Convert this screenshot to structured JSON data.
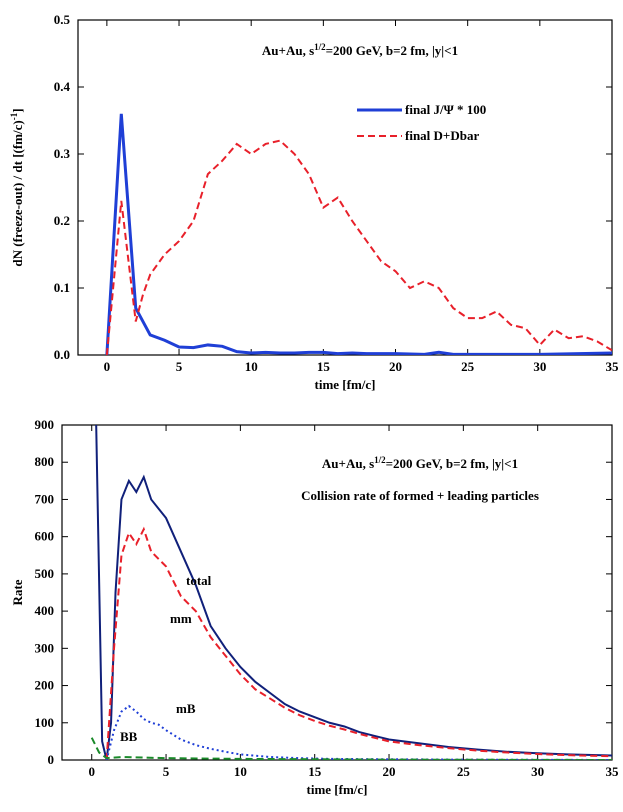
{
  "chart_data": [
    {
      "type": "line",
      "title": [
        "Au+Au, s",
        "1/2",
        "=200 GeV, b=2 fm, |y|<1"
      ],
      "x_label": "time [fm/c]",
      "y_label": [
        "dN (freeze-out) / dt   [(fm/c)",
        "-1",
        "]"
      ],
      "xlim": [
        -2,
        35
      ],
      "xticks": [
        0,
        5,
        10,
        15,
        20,
        25,
        30,
        35
      ],
      "ylim": [
        0,
        0.5
      ],
      "yticks": [
        {
          "value": 0,
          "label": "0.0"
        },
        0.1,
        0.2,
        0.3,
        0.4,
        0.5
      ],
      "legend": "upper right",
      "series": [
        {
          "name": "final J/Ψ * 100",
          "color": "#1f3fd6",
          "dash": "solid",
          "x": [
            0,
            1,
            2,
            3,
            4,
            5,
            6,
            7,
            8,
            9,
            10,
            11,
            12,
            13,
            14,
            15,
            16,
            17,
            18,
            20,
            22,
            23,
            24,
            30,
            35
          ],
          "values": [
            0,
            0.36,
            0.07,
            0.03,
            0.022,
            0.012,
            0.011,
            0.015,
            0.013,
            0.005,
            0.003,
            0.004,
            0.003,
            0.003,
            0.004,
            0.004,
            0.002,
            0.003,
            0.002,
            0.002,
            0.001,
            0.004,
            0.001,
            0.001,
            0.003
          ]
        },
        {
          "name": "final D+Dbar",
          "color": "#e8202a",
          "dash": "dashed",
          "x": [
            0,
            1,
            2,
            2.5,
            3,
            4,
            5,
            6,
            7,
            8,
            9,
            10,
            11,
            12,
            13,
            14,
            15,
            16,
            17,
            18,
            19,
            20,
            21,
            22,
            23,
            24,
            25,
            26,
            27,
            28,
            29,
            30,
            31,
            32,
            33,
            34,
            35
          ],
          "values": [
            0,
            0.23,
            0.05,
            0.09,
            0.12,
            0.15,
            0.17,
            0.2,
            0.27,
            0.29,
            0.315,
            0.3,
            0.315,
            0.32,
            0.3,
            0.27,
            0.22,
            0.235,
            0.2,
            0.17,
            0.14,
            0.125,
            0.1,
            0.11,
            0.1,
            0.07,
            0.055,
            0.055,
            0.065,
            0.045,
            0.04,
            0.015,
            0.038,
            0.025,
            0.028,
            0.02,
            0.007
          ]
        }
      ]
    },
    {
      "type": "line",
      "title": [
        "Au+Au, s",
        "1/2",
        "=200 GeV, b=2 fm, |y|<1"
      ],
      "subtitle": "Collision rate of formed + leading particles",
      "x_label": "time [fm/c]",
      "y_label": [
        "Rate"
      ],
      "xlim": [
        -2,
        35
      ],
      "xticks": [
        0,
        5,
        10,
        15,
        20,
        25,
        30,
        35
      ],
      "ylim": [
        0,
        900
      ],
      "yticks": [
        0,
        100,
        200,
        300,
        400,
        500,
        600,
        700,
        800,
        900
      ],
      "series": [
        {
          "name": "total",
          "color": "#10207a",
          "dash": "solid",
          "x": [
            0,
            0.1,
            0.3,
            0.7,
            1,
            1.3,
            1.6,
            2,
            2.5,
            3,
            3.5,
            4,
            5,
            6,
            7,
            8,
            9,
            10,
            11,
            12,
            13,
            14,
            15,
            16,
            17,
            18,
            19,
            20,
            22,
            24,
            26,
            28,
            30,
            32,
            35
          ],
          "values": [
            900,
            950,
            900,
            50,
            0,
            100,
            450,
            700,
            750,
            720,
            760,
            700,
            650,
            560,
            470,
            360,
            300,
            250,
            210,
            180,
            150,
            130,
            115,
            100,
            90,
            75,
            65,
            55,
            45,
            35,
            28,
            22,
            18,
            15,
            12
          ]
        },
        {
          "name": "mm",
          "color": "#e8202a",
          "dash": "dashed",
          "x": [
            1,
            1.5,
            2,
            2.5,
            3,
            3.5,
            4,
            5,
            6,
            7,
            8,
            9,
            10,
            11,
            12,
            13,
            14,
            15,
            16,
            17,
            18,
            19,
            20,
            22,
            24,
            26,
            28,
            30,
            32,
            35
          ],
          "values": [
            0,
            300,
            550,
            610,
            580,
            620,
            560,
            520,
            440,
            400,
            330,
            280,
            230,
            190,
            165,
            140,
            120,
            105,
            92,
            82,
            70,
            60,
            50,
            40,
            32,
            25,
            20,
            16,
            13,
            10
          ]
        },
        {
          "name": "mB",
          "color": "#1f3fd6",
          "dash": "dotted",
          "x": [
            1,
            1.5,
            2,
            2.5,
            3,
            3.5,
            4,
            4.5,
            5,
            6,
            7,
            8,
            9,
            10,
            12,
            14,
            16,
            20,
            25,
            35
          ],
          "values": [
            0,
            80,
            130,
            145,
            130,
            110,
            100,
            95,
            80,
            55,
            40,
            30,
            22,
            15,
            8,
            5,
            3,
            2,
            1,
            0
          ]
        },
        {
          "name": "BB",
          "color": "#1a8a2a",
          "dash": "dashed",
          "x": [
            0,
            0.5,
            1,
            2,
            5,
            10,
            20,
            35
          ],
          "values": [
            60,
            20,
            5,
            8,
            5,
            3,
            1,
            0
          ]
        }
      ]
    }
  ]
}
